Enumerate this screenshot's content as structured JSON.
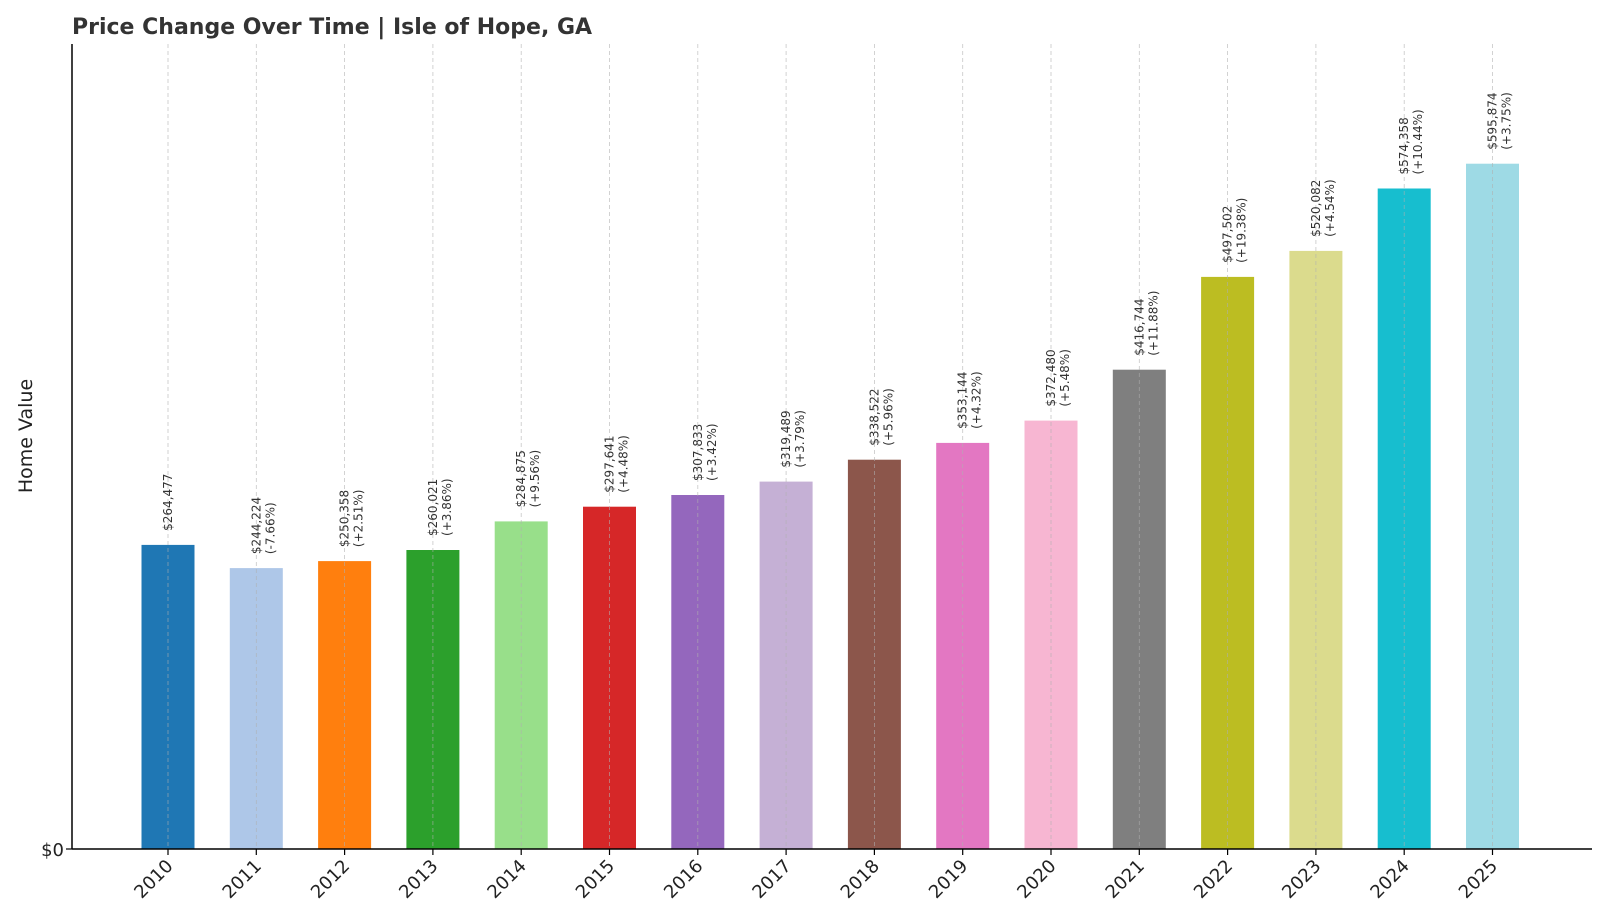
{
  "chart_data": {
    "type": "bar",
    "title": "Price Change Over Time | Isle of Hope, GA",
    "xlabel": "",
    "ylabel": "Home Value",
    "y_tick_label": "$0",
    "ylim": [
      0,
      700000
    ],
    "grid": "vertical dashed",
    "categories": [
      "2010",
      "2011",
      "2012",
      "2013",
      "2014",
      "2015",
      "2016",
      "2017",
      "2018",
      "2019",
      "2020",
      "2021",
      "2022",
      "2023",
      "2024",
      "2025"
    ],
    "values": [
      264477,
      244224,
      250358,
      260021,
      284875,
      297641,
      307833,
      319489,
      338522,
      353144,
      372480,
      416744,
      497502,
      520082,
      574358,
      595874
    ],
    "value_labels": [
      "$264,477",
      "$244,224",
      "$250,358",
      "$260,021",
      "$284,875",
      "$297,641",
      "$307,833",
      "$319,489",
      "$338,522",
      "$353,144",
      "$372,480",
      "$416,744",
      "$497,502",
      "$520,082",
      "$574,358",
      "$595,874"
    ],
    "change_labels": [
      "",
      "(-7.66%)",
      "(+2.51%)",
      "(+3.86%)",
      "(+9.56%)",
      "(+4.48%)",
      "(+3.42%)",
      "(+3.79%)",
      "(+5.96%)",
      "(+4.32%)",
      "(+5.48%)",
      "(+11.88%)",
      "(+19.38%)",
      "(+4.54%)",
      "(+10.44%)",
      "(+3.75%)"
    ],
    "colors": [
      "#1f77b4",
      "#aec7e8",
      "#ff7f0e",
      "#2ca02c",
      "#98df8a",
      "#d62728",
      "#9467bd",
      "#c5b0d5",
      "#8c564b",
      "#e377c2",
      "#f7b6d2",
      "#7f7f7f",
      "#bcbd22",
      "#dbdb8d",
      "#17becf",
      "#9edae5"
    ]
  }
}
